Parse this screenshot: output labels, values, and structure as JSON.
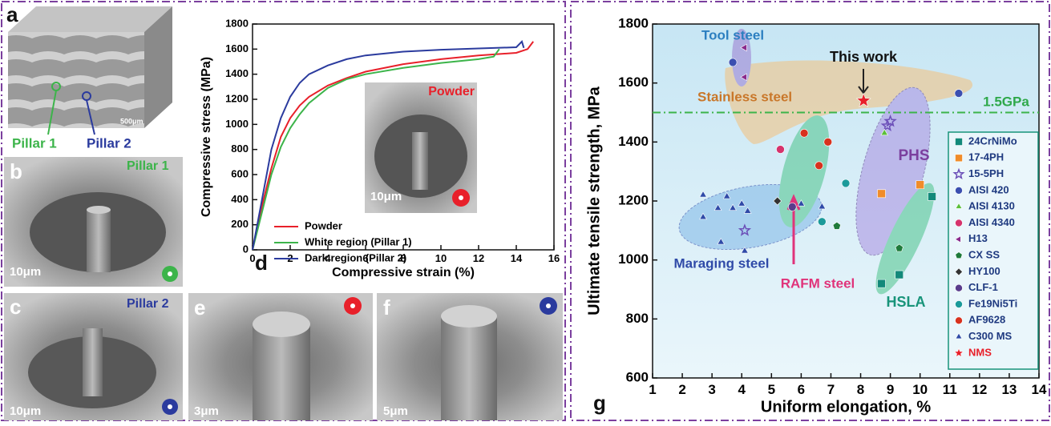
{
  "figure": {
    "panel_labels": [
      "a",
      "b",
      "c",
      "d",
      "e",
      "f",
      "g"
    ],
    "pillar_labels": [
      "Pillar 1",
      "Pillar 2"
    ],
    "pillar_titles": [
      "Pillar 1",
      "Pillar 2"
    ],
    "scale_bars": [
      "500μm",
      "10μm",
      "10μm",
      "10μm",
      "3μm",
      "5μm"
    ],
    "inset_label": "Powder"
  },
  "chart_data": [
    {
      "type": "line",
      "xlabel": "Compressive strain (%)",
      "ylabel": "Compressive stress (MPa)",
      "xlim": [
        0,
        16
      ],
      "ylim": [
        0,
        1800
      ],
      "xticks": [
        0,
        2,
        4,
        6,
        8,
        10,
        12,
        14,
        16
      ],
      "yticks": [
        0,
        200,
        400,
        600,
        800,
        1000,
        1200,
        1400,
        1600,
        1800
      ],
      "series": [
        {
          "name": "Powder",
          "color": "#e8202a",
          "x": [
            0,
            0.5,
            1,
            1.5,
            2,
            2.5,
            3,
            4,
            5,
            6,
            8,
            10,
            12,
            14,
            14.6,
            14.9
          ],
          "values": [
            0,
            350,
            650,
            900,
            1050,
            1150,
            1220,
            1310,
            1370,
            1420,
            1480,
            1520,
            1550,
            1570,
            1600,
            1660
          ]
        },
        {
          "name": "White region (Pillar 1)",
          "color": "#3cb44a",
          "x": [
            0,
            0.5,
            1,
            1.5,
            2,
            2.5,
            3,
            4,
            5,
            6,
            8,
            10,
            12,
            12.8,
            13.1
          ],
          "values": [
            0,
            300,
            600,
            820,
            970,
            1080,
            1170,
            1290,
            1360,
            1400,
            1450,
            1490,
            1520,
            1540,
            1600
          ]
        },
        {
          "name": "Dark region (Pillar 2)",
          "color": "#2b3b9e",
          "x": [
            0,
            0.5,
            1,
            1.5,
            2,
            2.5,
            3,
            4,
            5,
            6,
            8,
            10,
            12,
            14,
            14.3,
            14.4
          ],
          "values": [
            0,
            400,
            800,
            1050,
            1220,
            1330,
            1400,
            1470,
            1520,
            1550,
            1580,
            1595,
            1605,
            1615,
            1660,
            1610
          ]
        }
      ]
    },
    {
      "type": "scatter",
      "xlabel": "Uniform elongation, %",
      "ylabel": "Ultimate tensile strength, MPa",
      "xlim": [
        1,
        14
      ],
      "ylim": [
        600,
        1800
      ],
      "xticks": [
        1,
        2,
        3,
        4,
        5,
        6,
        7,
        8,
        9,
        10,
        11,
        12,
        13,
        14
      ],
      "yticks": [
        600,
        800,
        1000,
        1200,
        1400,
        1600,
        1800
      ],
      "reference_line": 1500,
      "annotations": [
        "Tool steel",
        "Stainless steel",
        "This work",
        "1.5GPa",
        "PHS",
        "Maraging steel",
        "RAFM steel",
        "HSLA"
      ],
      "series": [
        {
          "name": "24CrNiMo",
          "color": "#13897a",
          "marker": "square",
          "x": [
            8.7,
            9.3,
            10.4
          ],
          "values": [
            920,
            950,
            1215
          ]
        },
        {
          "name": "17-4PH",
          "color": "#f08c2a",
          "marker": "square",
          "x": [
            8.7,
            10.0
          ],
          "values": [
            1225,
            1255
          ]
        },
        {
          "name": "15-5PH",
          "color": "#6c4fb8",
          "marker": "star-open",
          "x": [
            8.9,
            9.0,
            4.1
          ],
          "values": [
            1455,
            1470,
            1100
          ]
        },
        {
          "name": "AISI 420",
          "color": "#3b4fb0",
          "marker": "circle",
          "x": [
            3.7,
            11.3
          ],
          "values": [
            1670,
            1565
          ]
        },
        {
          "name": "AISI 4130",
          "color": "#5bbf3a",
          "marker": "triangle",
          "x": [
            8.8
          ],
          "values": [
            1430
          ]
        },
        {
          "name": "AISI 4340",
          "color": "#d6336c",
          "marker": "circle",
          "x": [
            5.3
          ],
          "values": [
            1375
          ]
        },
        {
          "name": "H13",
          "color": "#8a2a8c",
          "marker": "tri-left",
          "x": [
            4.1,
            4.1
          ],
          "values": [
            1720,
            1620
          ]
        },
        {
          "name": "CX SS",
          "color": "#1f7a3a",
          "marker": "pentagon",
          "x": [
            7.2,
            9.3
          ],
          "values": [
            1115,
            1040
          ]
        },
        {
          "name": "HY100",
          "color": "#333333",
          "marker": "diamond",
          "x": [
            5.2
          ],
          "values": [
            1200
          ]
        },
        {
          "name": "CLF-1",
          "color": "#5a3c8c",
          "marker": "circle",
          "x": [
            5.7
          ],
          "values": [
            1180
          ]
        },
        {
          "name": "Fe19Ni5Ti",
          "color": "#1b9a9a",
          "marker": "circle",
          "x": [
            6.7,
            7.5
          ],
          "values": [
            1130,
            1260
          ]
        },
        {
          "name": "AF9628",
          "color": "#d8321e",
          "marker": "circle",
          "x": [
            6.1,
            6.9,
            6.6
          ],
          "values": [
            1430,
            1400,
            1320
          ]
        },
        {
          "name": "C300 MS",
          "color": "#2f4aa8",
          "marker": "triangle",
          "x": [
            2.7,
            2.7,
            3.2,
            3.5,
            3.7,
            3.3,
            4.0,
            4.2,
            4.1,
            6.0,
            6.7
          ],
          "values": [
            1220,
            1145,
            1175,
            1215,
            1175,
            1060,
            1190,
            1165,
            1030,
            1190,
            1180
          ]
        },
        {
          "name": "NMS",
          "color": "#e8202a",
          "marker": "star",
          "x": [
            8.1
          ],
          "values": [
            1540
          ]
        }
      ]
    }
  ]
}
